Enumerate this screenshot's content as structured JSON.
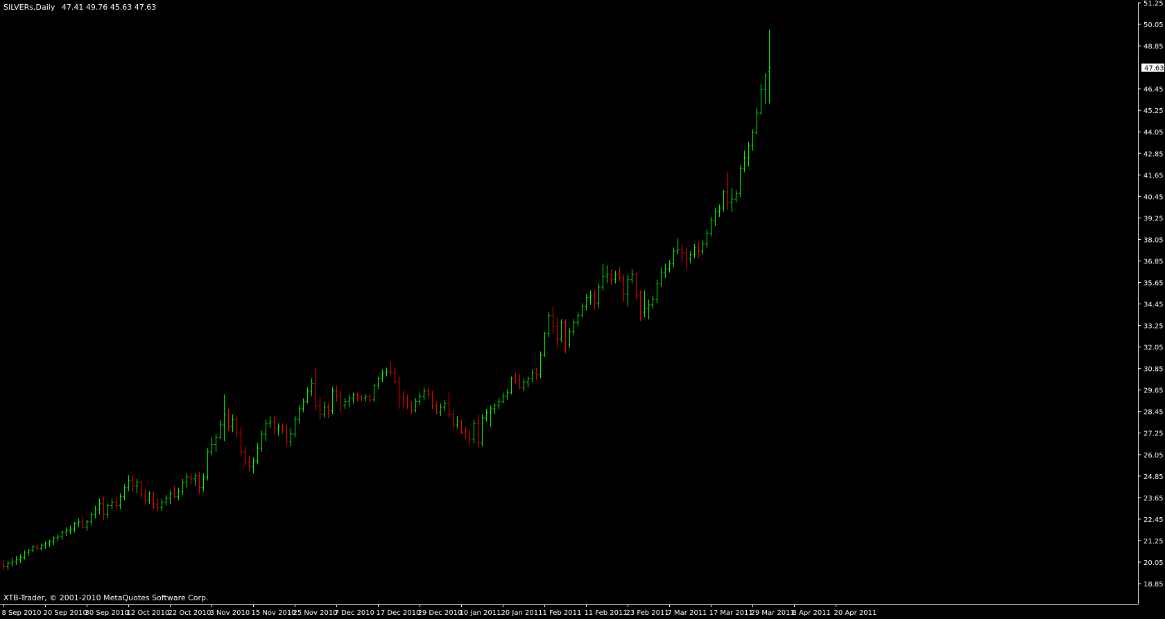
{
  "header": {
    "symbol": "SILVERs,Daily",
    "ohlc": "47.41 49.76 45.63 47.63"
  },
  "footer": {
    "copyright": "XTB-Trader, © 2001-2010 MetaQuotes Software Corp."
  },
  "colors": {
    "background": "#000000",
    "up": "#00ff00",
    "down": "#ff0000",
    "axis": "#ffffff",
    "text": "#ffffff",
    "price_label_bg": "#ffffff",
    "price_label_text": "#000000"
  },
  "chart_data": {
    "type": "ohlc",
    "title": "SILVERs,Daily",
    "xlabel": "",
    "ylabel": "",
    "ylim": [
      18.85,
      51.25
    ],
    "grid": false,
    "y_ticks": [
      "51.25",
      "50.05",
      "48.85",
      "47.63",
      "46.45",
      "45.25",
      "44.05",
      "42.85",
      "41.65",
      "40.45",
      "39.25",
      "38.05",
      "36.85",
      "35.65",
      "34.45",
      "33.25",
      "32.05",
      "30.85",
      "29.65",
      "28.45",
      "27.25",
      "26.05",
      "24.85",
      "23.65",
      "22.45",
      "21.25",
      "20.05",
      "18.85"
    ],
    "last_price": 47.63,
    "x_ticks": [
      {
        "label": "8 Sep 2010",
        "bar": 0
      },
      {
        "label": "20 Sep 2010",
        "bar": 10
      },
      {
        "label": "30 Sep 2010",
        "bar": 20
      },
      {
        "label": "12 Oct 2010",
        "bar": 30
      },
      {
        "label": "22 Oct 2010",
        "bar": 40
      },
      {
        "label": "3 Nov 2010",
        "bar": 50
      },
      {
        "label": "15 Nov 2010",
        "bar": 60
      },
      {
        "label": "25 Nov 2010",
        "bar": 70
      },
      {
        "label": "7 Dec 2010",
        "bar": 80
      },
      {
        "label": "17 Dec 2010",
        "bar": 90
      },
      {
        "label": "29 Dec 2010",
        "bar": 100
      },
      {
        "label": "10 Jan 2011",
        "bar": 110
      },
      {
        "label": "20 Jan 2011",
        "bar": 120
      },
      {
        "label": "1 Feb 2011",
        "bar": 130
      },
      {
        "label": "11 Feb 2011",
        "bar": 140
      },
      {
        "label": "23 Feb 2011",
        "bar": 150
      },
      {
        "label": "7 Mar 2011",
        "bar": 160
      },
      {
        "label": "17 Mar 2011",
        "bar": 170
      },
      {
        "label": "29 Mar 2011",
        "bar": 180
      },
      {
        "label": "8 Apr 2011",
        "bar": 190
      },
      {
        "label": "20 Apr 2011",
        "bar": 200
      }
    ],
    "bars": [
      [
        19.9,
        20.2,
        19.6,
        19.8
      ],
      [
        19.8,
        20.1,
        19.6,
        20.0
      ],
      [
        20.0,
        20.3,
        19.8,
        20.1
      ],
      [
        20.1,
        20.4,
        19.9,
        20.2
      ],
      [
        20.2,
        20.5,
        20.0,
        20.3
      ],
      [
        20.3,
        20.7,
        20.2,
        20.6
      ],
      [
        20.6,
        20.8,
        20.4,
        20.7
      ],
      [
        20.7,
        21.0,
        20.6,
        20.9
      ],
      [
        20.9,
        21.1,
        20.7,
        20.8
      ],
      [
        20.8,
        21.1,
        20.7,
        21.0
      ],
      [
        21.0,
        21.2,
        20.8,
        21.1
      ],
      [
        21.1,
        21.3,
        20.9,
        21.2
      ],
      [
        21.2,
        21.5,
        21.0,
        21.4
      ],
      [
        21.4,
        21.6,
        21.2,
        21.5
      ],
      [
        21.5,
        21.8,
        21.3,
        21.7
      ],
      [
        21.7,
        22.0,
        21.5,
        21.8
      ],
      [
        21.8,
        22.1,
        21.6,
        21.9
      ],
      [
        21.9,
        22.3,
        21.7,
        22.2
      ],
      [
        22.2,
        22.5,
        22.0,
        22.3
      ],
      [
        22.3,
        22.6,
        21.9,
        22.0
      ],
      [
        22.0,
        22.4,
        21.8,
        22.3
      ],
      [
        22.3,
        22.8,
        22.1,
        22.7
      ],
      [
        22.7,
        23.2,
        22.5,
        23.0
      ],
      [
        23.0,
        23.6,
        22.7,
        23.3
      ],
      [
        23.3,
        23.7,
        22.4,
        22.7
      ],
      [
        22.7,
        23.3,
        22.5,
        23.2
      ],
      [
        23.2,
        23.6,
        23.0,
        23.4
      ],
      [
        23.4,
        23.7,
        23.0,
        23.2
      ],
      [
        23.2,
        23.9,
        23.0,
        23.7
      ],
      [
        23.7,
        24.4,
        23.5,
        24.2
      ],
      [
        24.2,
        24.9,
        24.0,
        24.6
      ],
      [
        24.6,
        24.9,
        24.0,
        24.3
      ],
      [
        24.3,
        24.7,
        23.9,
        24.5
      ],
      [
        24.5,
        24.6,
        23.6,
        23.8
      ],
      [
        23.8,
        24.1,
        23.2,
        23.5
      ],
      [
        23.5,
        24.0,
        23.3,
        23.9
      ],
      [
        23.9,
        24.0,
        23.0,
        23.3
      ],
      [
        23.3,
        23.6,
        22.9,
        23.1
      ],
      [
        23.1,
        23.6,
        22.9,
        23.4
      ],
      [
        23.4,
        23.8,
        23.2,
        23.6
      ],
      [
        23.6,
        24.1,
        23.3,
        23.9
      ],
      [
        23.9,
        24.3,
        23.6,
        23.7
      ],
      [
        23.7,
        24.2,
        23.5,
        24.0
      ],
      [
        24.0,
        24.7,
        23.8,
        24.5
      ],
      [
        24.5,
        25.0,
        24.2,
        24.8
      ],
      [
        24.8,
        25.0,
        24.4,
        24.7
      ],
      [
        24.7,
        25.0,
        24.3,
        24.9
      ],
      [
        24.9,
        25.1,
        23.9,
        24.2
      ],
      [
        24.2,
        25.0,
        24.0,
        24.8
      ],
      [
        24.8,
        26.4,
        24.6,
        26.2
      ],
      [
        26.2,
        27.0,
        26.0,
        26.6
      ],
      [
        26.6,
        27.2,
        26.2,
        27.0
      ],
      [
        27.0,
        28.0,
        26.9,
        27.7
      ],
      [
        27.7,
        29.4,
        26.8,
        28.3
      ],
      [
        28.3,
        28.6,
        27.4,
        27.6
      ],
      [
        27.6,
        28.3,
        27.3,
        28.0
      ],
      [
        28.0,
        28.2,
        27.0,
        27.3
      ],
      [
        27.3,
        27.6,
        26.0,
        26.2
      ],
      [
        26.2,
        26.5,
        25.4,
        25.6
      ],
      [
        25.6,
        26.0,
        25.1,
        25.4
      ],
      [
        25.4,
        25.9,
        25.0,
        25.7
      ],
      [
        25.7,
        26.7,
        25.5,
        26.4
      ],
      [
        26.4,
        27.4,
        26.2,
        27.2
      ],
      [
        27.2,
        28.0,
        26.8,
        27.8
      ],
      [
        27.8,
        28.2,
        27.5,
        27.9
      ],
      [
        27.9,
        28.2,
        27.2,
        27.5
      ],
      [
        27.5,
        27.8,
        27.1,
        27.6
      ],
      [
        27.6,
        27.8,
        27.2,
        27.4
      ],
      [
        27.4,
        27.7,
        26.5,
        26.8
      ],
      [
        26.8,
        27.5,
        26.5,
        27.2
      ],
      [
        27.2,
        28.2,
        27.0,
        28.0
      ],
      [
        28.0,
        28.8,
        27.8,
        28.6
      ],
      [
        28.6,
        29.2,
        28.4,
        29.0
      ],
      [
        29.0,
        29.8,
        28.9,
        29.6
      ],
      [
        29.6,
        30.3,
        29.3,
        30.0
      ],
      [
        30.0,
        30.9,
        28.5,
        28.8
      ],
      [
        28.8,
        29.3,
        28.0,
        28.3
      ],
      [
        28.3,
        29.0,
        28.1,
        28.7
      ],
      [
        28.7,
        28.9,
        28.1,
        28.5
      ],
      [
        28.5,
        29.8,
        28.3,
        29.6
      ],
      [
        29.6,
        29.9,
        29.0,
        29.3
      ],
      [
        29.3,
        29.6,
        28.4,
        28.8
      ],
      [
        28.8,
        29.2,
        28.6,
        29.0
      ],
      [
        29.0,
        29.4,
        28.7,
        29.2
      ],
      [
        29.2,
        29.5,
        28.9,
        29.4
      ],
      [
        29.4,
        29.5,
        29.0,
        29.3
      ],
      [
        29.3,
        29.4,
        29.0,
        29.2
      ],
      [
        29.2,
        29.4,
        29.0,
        29.3
      ],
      [
        29.3,
        29.4,
        28.9,
        29.1
      ],
      [
        29.1,
        30.0,
        29.0,
        29.9
      ],
      [
        29.9,
        30.4,
        29.7,
        30.3
      ],
      [
        30.3,
        30.8,
        30.1,
        30.6
      ],
      [
        30.6,
        30.9,
        30.4,
        30.7
      ],
      [
        30.7,
        31.2,
        30.5,
        30.6
      ],
      [
        30.6,
        30.9,
        30.0,
        30.1
      ],
      [
        30.1,
        30.4,
        28.6,
        29.3
      ],
      [
        29.3,
        29.6,
        28.7,
        29.2
      ],
      [
        29.2,
        29.4,
        28.6,
        28.8
      ],
      [
        28.8,
        29.0,
        28.3,
        28.5
      ],
      [
        28.5,
        29.2,
        28.4,
        29.0
      ],
      [
        29.0,
        29.5,
        28.8,
        29.3
      ],
      [
        29.3,
        29.8,
        29.1,
        29.6
      ],
      [
        29.6,
        29.8,
        29.2,
        29.4
      ],
      [
        29.4,
        29.6,
        28.6,
        28.8
      ],
      [
        28.8,
        29.0,
        28.3,
        28.4
      ],
      [
        28.4,
        28.9,
        28.2,
        28.7
      ],
      [
        28.7,
        29.1,
        28.5,
        28.9
      ],
      [
        28.9,
        29.5,
        28.1,
        28.3
      ],
      [
        28.3,
        28.5,
        27.5,
        27.7
      ],
      [
        27.7,
        28.2,
        27.5,
        27.9
      ],
      [
        27.9,
        28.0,
        27.2,
        27.3
      ],
      [
        27.3,
        27.6,
        26.9,
        27.0
      ],
      [
        27.0,
        27.4,
        26.6,
        26.9
      ],
      [
        26.9,
        28.0,
        26.7,
        27.8
      ],
      [
        27.8,
        28.3,
        26.4,
        26.7
      ],
      [
        26.7,
        28.3,
        26.5,
        28.1
      ],
      [
        28.1,
        28.6,
        27.9,
        28.4
      ],
      [
        28.4,
        28.8,
        27.6,
        28.6
      ],
      [
        28.6,
        28.9,
        28.3,
        28.8
      ],
      [
        28.8,
        29.2,
        28.6,
        29.0
      ],
      [
        29.0,
        29.5,
        28.9,
        29.3
      ],
      [
        29.3,
        29.7,
        29.1,
        29.5
      ],
      [
        29.5,
        30.4,
        29.4,
        30.3
      ],
      [
        30.3,
        30.6,
        30.0,
        30.2
      ],
      [
        30.2,
        30.5,
        29.7,
        29.8
      ],
      [
        29.8,
        30.3,
        29.6,
        30.1
      ],
      [
        30.1,
        30.4,
        29.8,
        30.3
      ],
      [
        30.3,
        30.8,
        30.1,
        30.6
      ],
      [
        30.6,
        30.9,
        30.2,
        30.5
      ],
      [
        30.5,
        31.8,
        30.3,
        31.6
      ],
      [
        31.6,
        32.9,
        31.5,
        32.8
      ],
      [
        32.8,
        34.0,
        32.6,
        33.8
      ],
      [
        33.8,
        34.3,
        32.8,
        33.2
      ],
      [
        33.2,
        33.7,
        32.0,
        32.5
      ],
      [
        32.5,
        33.6,
        32.3,
        33.4
      ],
      [
        33.4,
        33.6,
        31.7,
        32.2
      ],
      [
        32.2,
        33.1,
        32.0,
        32.9
      ],
      [
        32.9,
        33.6,
        32.7,
        33.4
      ],
      [
        33.4,
        34.0,
        33.2,
        33.8
      ],
      [
        33.8,
        34.5,
        33.7,
        34.3
      ],
      [
        34.3,
        35.0,
        34.1,
        34.8
      ],
      [
        34.8,
        35.2,
        34.4,
        34.9
      ],
      [
        34.9,
        35.2,
        34.1,
        34.5
      ],
      [
        34.5,
        35.6,
        34.2,
        35.4
      ],
      [
        35.4,
        36.7,
        35.2,
        36.0
      ],
      [
        36.0,
        36.6,
        35.6,
        36.1
      ],
      [
        36.1,
        36.4,
        35.5,
        35.8
      ],
      [
        35.8,
        36.3,
        35.6,
        36.1
      ],
      [
        36.1,
        36.5,
        35.7,
        35.9
      ],
      [
        35.9,
        36.1,
        34.6,
        35.0
      ],
      [
        35.0,
        36.1,
        34.3,
        35.8
      ],
      [
        35.8,
        36.4,
        35.6,
        36.1
      ],
      [
        36.1,
        36.2,
        34.7,
        34.9
      ],
      [
        34.9,
        35.2,
        33.5,
        34.0
      ],
      [
        34.0,
        35.2,
        33.7,
        34.2
      ],
      [
        34.2,
        34.7,
        33.6,
        34.4
      ],
      [
        34.4,
        34.9,
        34.2,
        34.7
      ],
      [
        34.7,
        35.8,
        34.5,
        35.6
      ],
      [
        35.6,
        36.5,
        35.4,
        36.2
      ],
      [
        36.2,
        36.7,
        35.9,
        36.4
      ],
      [
        36.4,
        36.9,
        36.2,
        36.7
      ],
      [
        36.7,
        37.6,
        36.5,
        37.4
      ],
      [
        37.4,
        38.1,
        37.2,
        37.5
      ],
      [
        37.5,
        37.8,
        36.8,
        37.3
      ],
      [
        37.3,
        37.6,
        36.4,
        37.0
      ],
      [
        37.0,
        37.4,
        36.7,
        37.2
      ],
      [
        37.2,
        37.8,
        37.0,
        37.6
      ],
      [
        37.6,
        37.9,
        37.0,
        37.4
      ],
      [
        37.4,
        38.0,
        37.2,
        37.8
      ],
      [
        37.8,
        38.6,
        37.6,
        38.4
      ],
      [
        38.4,
        39.3,
        38.2,
        39.1
      ],
      [
        39.1,
        39.8,
        38.8,
        39.6
      ],
      [
        39.6,
        40.0,
        39.3,
        39.8
      ],
      [
        39.8,
        40.8,
        39.6,
        40.7
      ],
      [
        40.7,
        41.8,
        39.7,
        40.1
      ],
      [
        40.1,
        40.9,
        39.6,
        40.3
      ],
      [
        40.3,
        40.8,
        40.1,
        40.6
      ],
      [
        40.6,
        42.2,
        40.4,
        42.0
      ],
      [
        42.0,
        43.0,
        41.8,
        42.6
      ],
      [
        42.6,
        43.5,
        42.1,
        43.3
      ],
      [
        43.3,
        44.2,
        43.0,
        44.0
      ],
      [
        44.0,
        45.4,
        43.9,
        45.1
      ],
      [
        45.1,
        46.7,
        45.0,
        46.4
      ],
      [
        46.4,
        47.3,
        45.6,
        47.2
      ],
      [
        47.41,
        49.76,
        45.63,
        47.63
      ]
    ]
  }
}
